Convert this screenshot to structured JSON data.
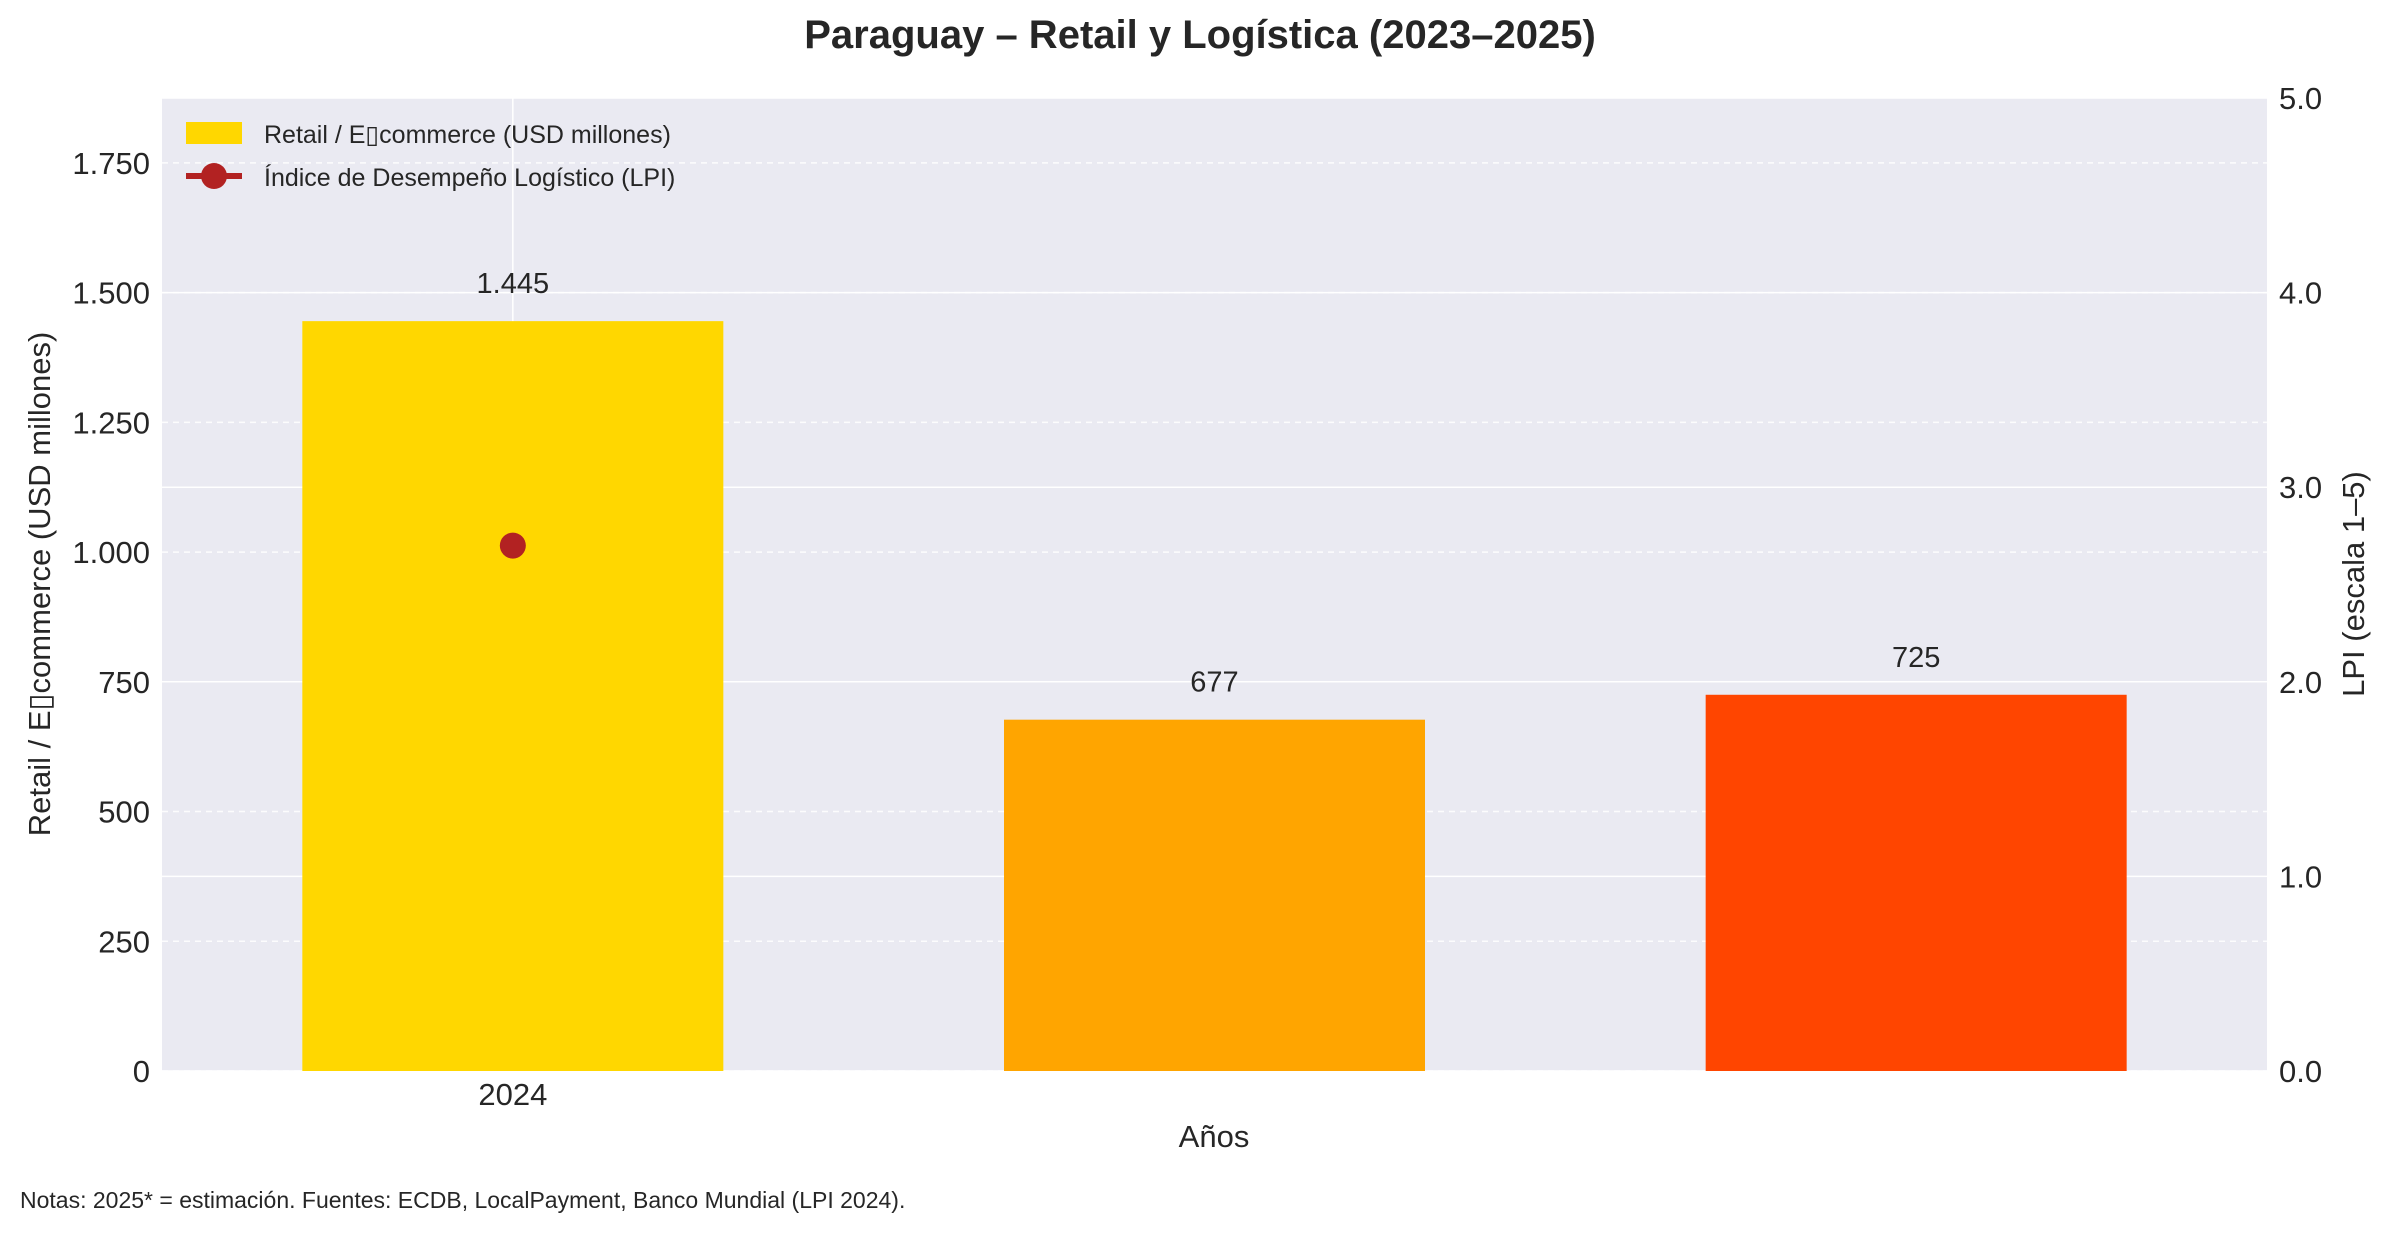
{
  "chart_data": {
    "type": "bar",
    "title": "Paraguay – Retail y Logística (2023–2025)",
    "xlabel": "Años",
    "ylabel_left": "Retail / E▯commerce (USD millones)",
    "ylabel_right": "LPI (escala 1–5)",
    "categories": [
      "",
      "",
      ""
    ],
    "x_tick_labels": [
      {
        "index": 0,
        "label": "2024"
      }
    ],
    "bars": {
      "name": "Retail / E▯commerce (USD millones)",
      "values": [
        1445,
        677,
        725
      ],
      "value_labels": [
        "1.445",
        "677",
        "725"
      ],
      "colors": [
        "#FFD700",
        "#FFA500",
        "#FF4500"
      ]
    },
    "line": {
      "name": "Índice de Desempeño Logístico (LPI)",
      "points": [
        {
          "index": 0,
          "value": 2.7
        }
      ],
      "color": "#B22222"
    },
    "ylim_left": [
      0,
      1875
    ],
    "yticks_left": [
      0,
      250,
      500,
      750,
      1000,
      1250,
      1500,
      1750
    ],
    "ytick_labels_left": [
      "0",
      "250",
      "500",
      "750",
      "1.000",
      "1.250",
      "1.500",
      "1.750"
    ],
    "ylim_right": [
      0,
      5
    ],
    "yticks_right": [
      0,
      1,
      2,
      3,
      4,
      5
    ],
    "ytick_labels_right": [
      "0.0",
      "1.0",
      "2.0",
      "3.0",
      "4.0",
      "5.0"
    ],
    "grid": true,
    "legend_position": "top-left",
    "background_color": "#EAEAF2"
  },
  "note": "Notas: 2025* = estimación. Fuentes: ECDB, LocalPayment, Banco Mundial (LPI 2024)."
}
